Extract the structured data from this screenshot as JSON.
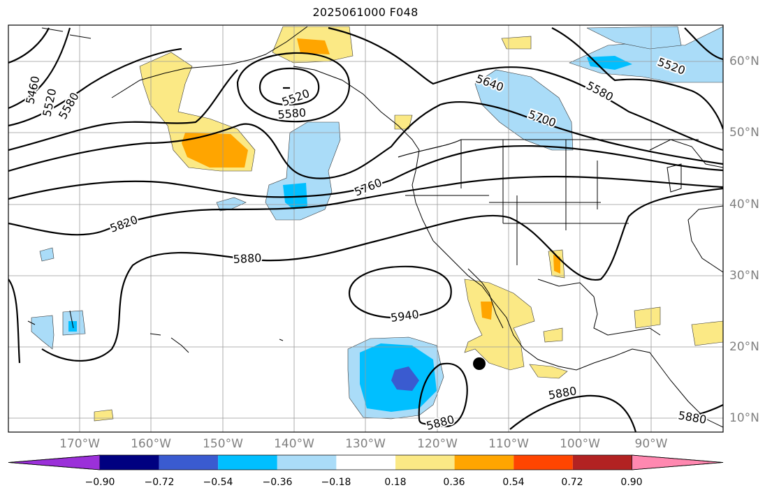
{
  "title": "2025061000 F048",
  "longitude_labels": [
    "170°W",
    "160°W",
    "150°W",
    "140°W",
    "130°W",
    "120°W",
    "110°W",
    "100°W",
    "90°W"
  ],
  "latitude_labels": [
    "60°N",
    "50°N",
    "40°N",
    "30°N",
    "20°N",
    "10°N"
  ],
  "contour_labels": [
    "5460",
    "5520",
    "5580",
    "5520",
    "5580",
    "5640",
    "5700",
    "5580",
    "5520",
    "5760",
    "5820",
    "5880",
    "5940",
    "5880",
    "5880",
    "5880"
  ],
  "colorbar": {
    "tick_labels": [
      "−0.90",
      "−0.72",
      "−0.54",
      "−0.36",
      "−0.18",
      "0.18",
      "0.36",
      "0.54",
      "0.72",
      "0.90"
    ],
    "colors": [
      "#9b30d9",
      "#000080",
      "#3a5bd0",
      "#00bfff",
      "#aadcf8",
      "#ffffff",
      "#fbe985",
      "#ffa500",
      "#ff4500",
      "#b22222",
      "#ff88b0"
    ]
  },
  "marker": {
    "name": "storm-position",
    "lon": -114,
    "lat": 17.5
  }
}
